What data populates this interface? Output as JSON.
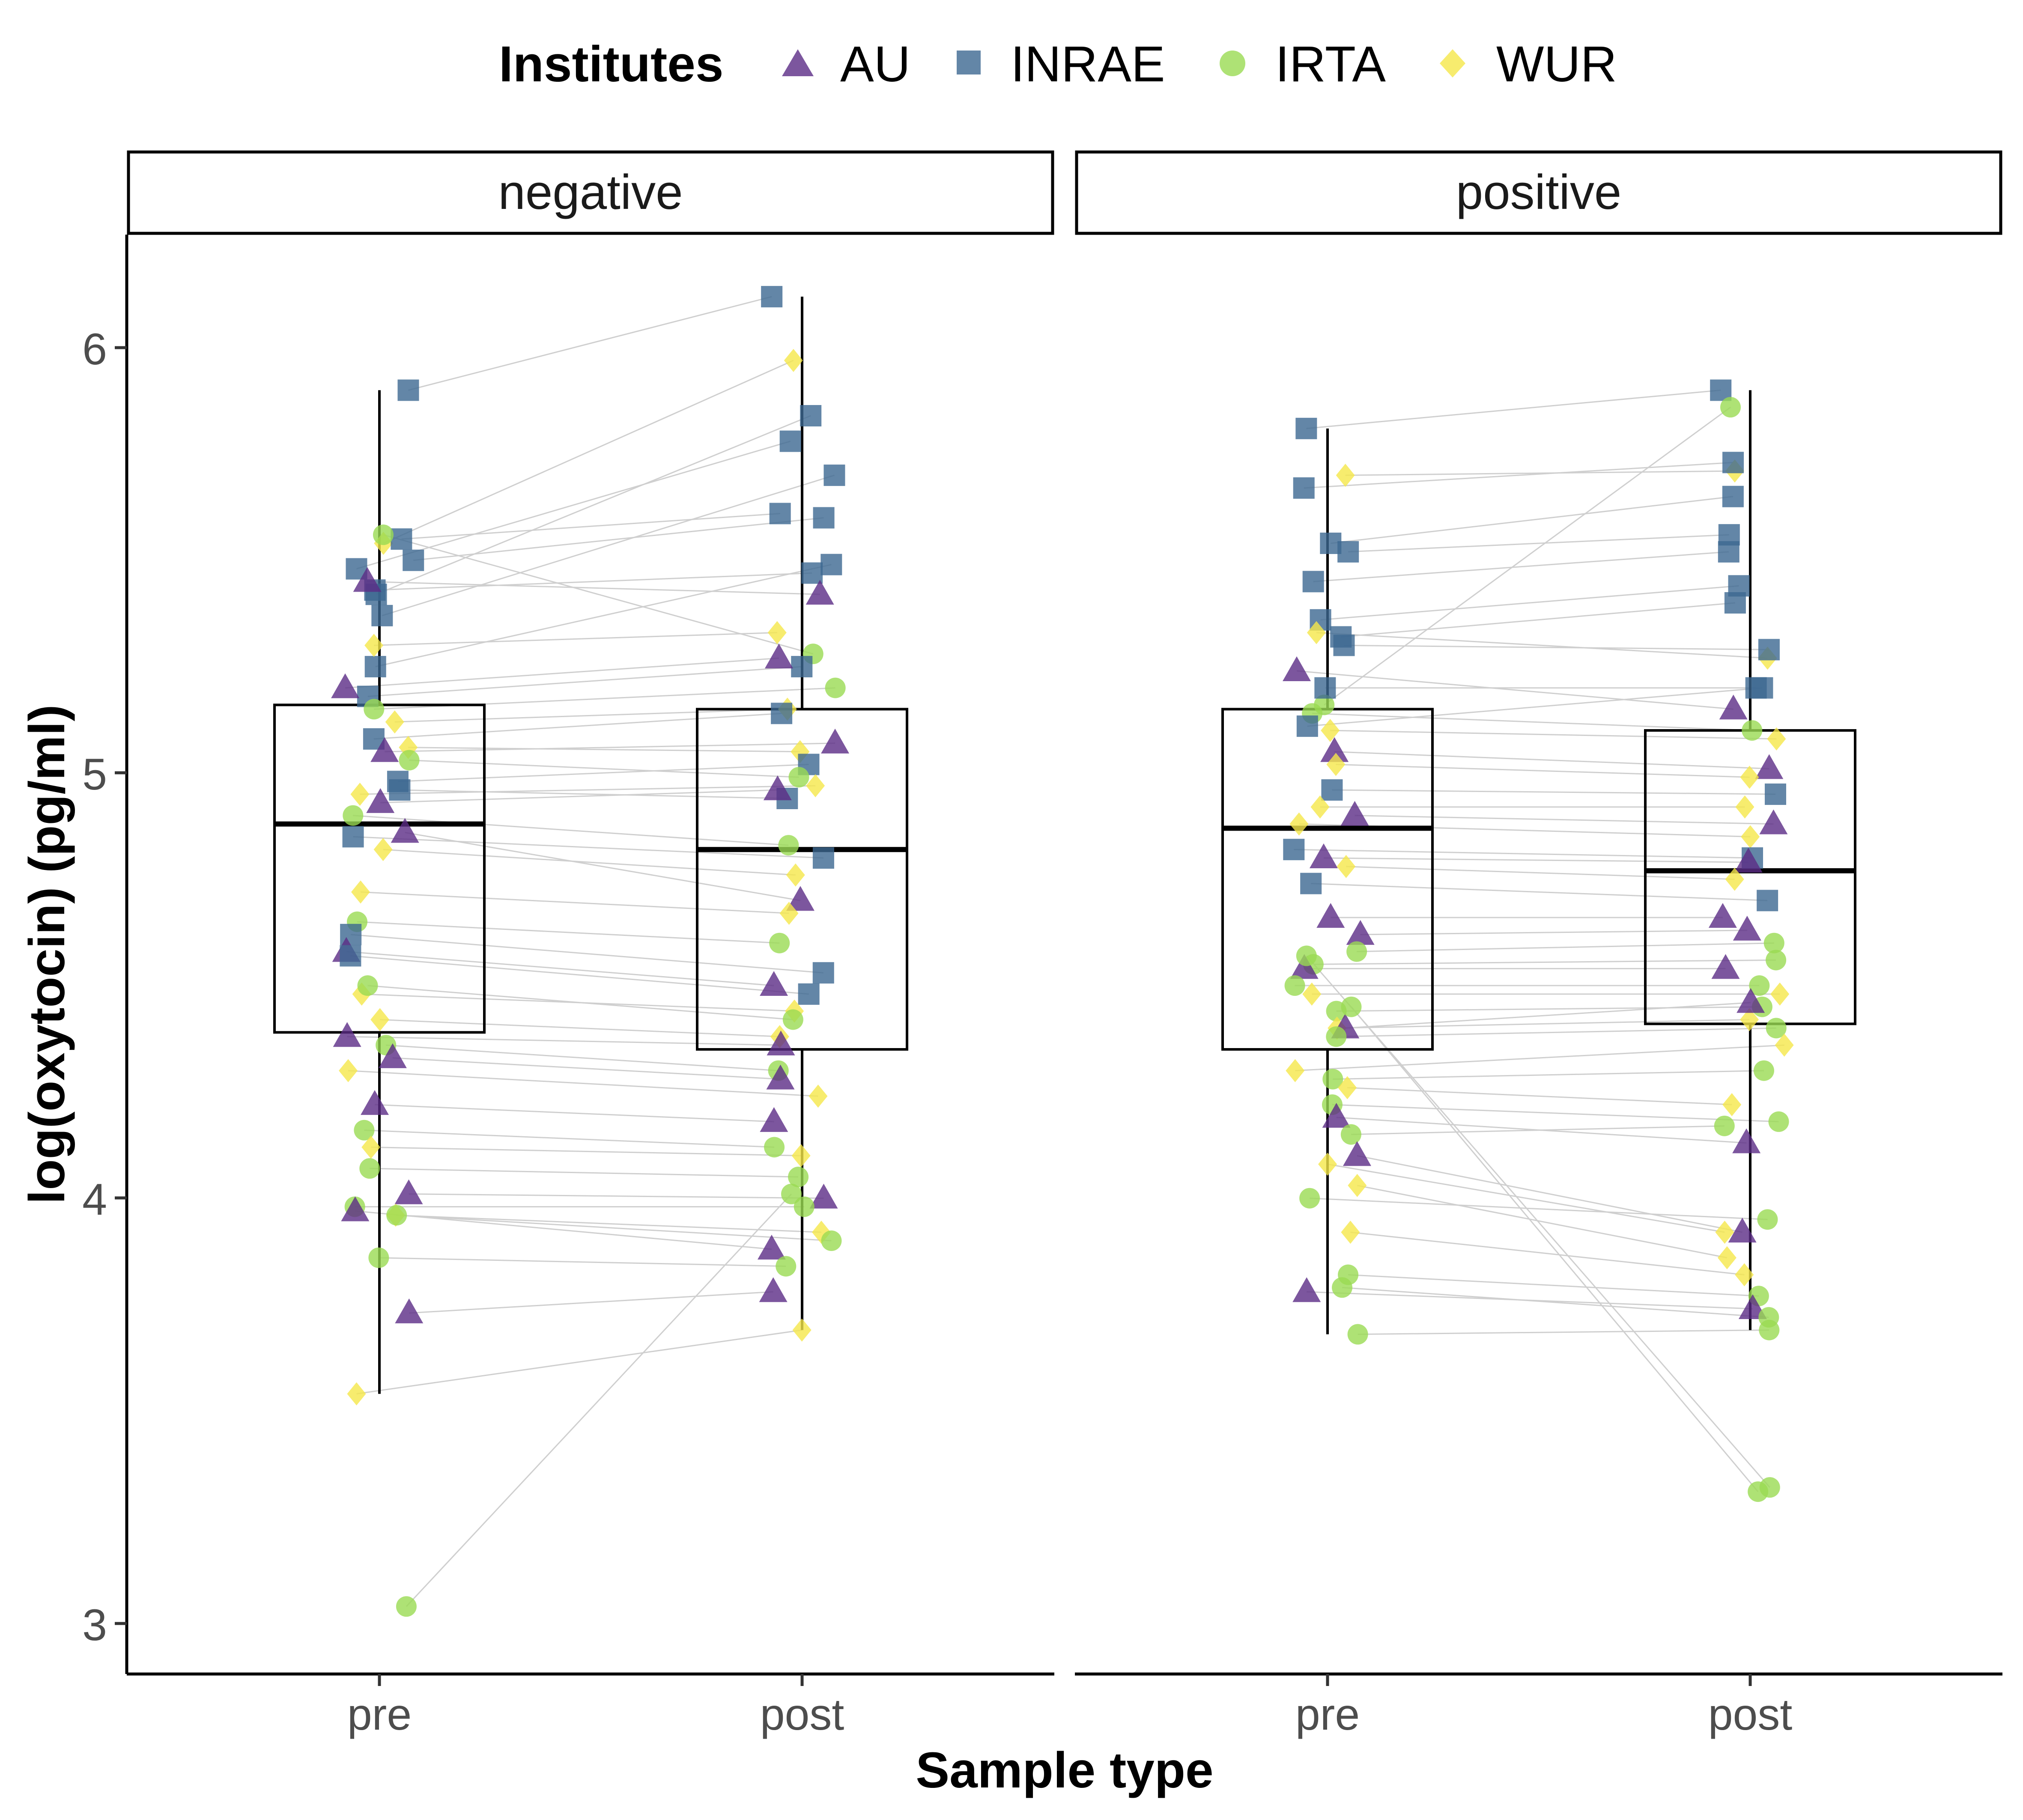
{
  "legend": {
    "title": "Institutes",
    "entries": [
      {
        "label": "AU",
        "shape": "triangle",
        "color": "#5B2C86"
      },
      {
        "label": "INRAE",
        "shape": "square",
        "color": "#3C6891"
      },
      {
        "label": "IRTA",
        "shape": "circle",
        "color": "#9ADB52"
      },
      {
        "label": "WUR",
        "shape": "diamond",
        "color": "#F5E74A"
      }
    ]
  },
  "axes": {
    "xlabel": "Sample type",
    "ylabel": "log(oxytocin) (pg/ml)",
    "yticks": [
      "3",
      "4",
      "5",
      "6"
    ],
    "xticks": [
      "pre",
      "post"
    ]
  },
  "colors": {
    "lines": "#cfcfcf",
    "box": "#000000",
    "axis_text": "#4d4d4d"
  },
  "chart_data": {
    "type": "scatter",
    "subtype": "faceted boxplot with jittered paired points",
    "ylim": [
      2.88,
      6.27
    ],
    "grid": false,
    "legend_position": "top",
    "categories": [
      "pre",
      "post"
    ],
    "facets": [
      {
        "name": "negative",
        "boxes": [
          {
            "category": "pre",
            "lower_whisker": 3.54,
            "q1": 4.39,
            "median": 4.88,
            "q3": 5.16,
            "upper_whisker": 5.9
          },
          {
            "category": "post",
            "lower_whisker": 3.69,
            "q1": 4.35,
            "median": 4.82,
            "q3": 5.15,
            "upper_whisker": 6.12
          }
        ],
        "pairs": [
          {
            "institute": "INRAE",
            "pre": 5.9,
            "post": 6.12
          },
          {
            "institute": "WUR",
            "pre": 5.54,
            "post": 5.97
          },
          {
            "institute": "INRAE",
            "pre": 5.42,
            "post": 5.84
          },
          {
            "institute": "INRAE",
            "pre": 5.48,
            "post": 5.78
          },
          {
            "institute": "INRAE",
            "pre": 5.37,
            "post": 5.7
          },
          {
            "institute": "INRAE",
            "pre": 5.55,
            "post": 5.61
          },
          {
            "institute": "INRAE",
            "pre": 5.5,
            "post": 5.6
          },
          {
            "institute": "INRAE",
            "pre": 5.25,
            "post": 5.49
          },
          {
            "institute": "INRAE",
            "pre": 5.43,
            "post": 5.47
          },
          {
            "institute": "AU",
            "pre": 5.45,
            "post": 5.42
          },
          {
            "institute": "IRTA",
            "pre": 5.56,
            "post": 5.28
          },
          {
            "institute": "WUR",
            "pre": 5.3,
            "post": 5.33
          },
          {
            "institute": "INRAE",
            "pre": 5.18,
            "post": 5.25
          },
          {
            "institute": "AU",
            "pre": 5.2,
            "post": 5.27
          },
          {
            "institute": "IRTA",
            "pre": 5.15,
            "post": 5.2
          },
          {
            "institute": "WUR",
            "pre": 5.12,
            "post": 5.15
          },
          {
            "institute": "INRAE",
            "pre": 5.08,
            "post": 5.14
          },
          {
            "institute": "AU",
            "pre": 5.05,
            "post": 5.07
          },
          {
            "institute": "WUR",
            "pre": 5.06,
            "post": 5.05
          },
          {
            "institute": "INRAE",
            "pre": 4.98,
            "post": 5.02
          },
          {
            "institute": "IRTA",
            "pre": 5.03,
            "post": 4.99
          },
          {
            "institute": "WUR",
            "pre": 4.95,
            "post": 4.97
          },
          {
            "institute": "INRAE",
            "pre": 4.96,
            "post": 4.94
          },
          {
            "institute": "AU",
            "pre": 4.93,
            "post": 4.96
          },
          {
            "institute": "IRTA",
            "pre": 4.9,
            "post": 4.83
          },
          {
            "institute": "INRAE",
            "pre": 4.85,
            "post": 4.8
          },
          {
            "institute": "WUR",
            "pre": 4.82,
            "post": 4.76
          },
          {
            "institute": "AU",
            "pre": 4.86,
            "post": 4.7
          },
          {
            "institute": "WUR",
            "pre": 4.72,
            "post": 4.67
          },
          {
            "institute": "IRTA",
            "pre": 4.65,
            "post": 4.6
          },
          {
            "institute": "INRAE",
            "pre": 4.62,
            "post": 4.53
          },
          {
            "institute": "AU",
            "pre": 4.58,
            "post": 4.5
          },
          {
            "institute": "INRAE",
            "pre": 4.57,
            "post": 4.48
          },
          {
            "institute": "WUR",
            "pre": 4.48,
            "post": 4.44
          },
          {
            "institute": "IRTA",
            "pre": 4.5,
            "post": 4.42
          },
          {
            "institute": "WUR",
            "pre": 4.42,
            "post": 4.38
          },
          {
            "institute": "AU",
            "pre": 4.38,
            "post": 4.36
          },
          {
            "institute": "IRTA",
            "pre": 4.36,
            "post": 4.3
          },
          {
            "institute": "AU",
            "pre": 4.33,
            "post": 4.28
          },
          {
            "institute": "WUR",
            "pre": 4.3,
            "post": 4.24
          },
          {
            "institute": "AU",
            "pre": 4.22,
            "post": 4.18
          },
          {
            "institute": "IRTA",
            "pre": 4.16,
            "post": 4.12
          },
          {
            "institute": "WUR",
            "pre": 4.12,
            "post": 4.1
          },
          {
            "institute": "IRTA",
            "pre": 4.07,
            "post": 4.05
          },
          {
            "institute": "AU",
            "pre": 4.01,
            "post": 4.0
          },
          {
            "institute": "IRTA",
            "pre": 3.98,
            "post": 3.98
          },
          {
            "institute": "WUR",
            "pre": 3.96,
            "post": 3.92
          },
          {
            "institute": "IRTA",
            "pre": 3.96,
            "post": 3.9
          },
          {
            "institute": "AU",
            "pre": 3.97,
            "post": 3.88
          },
          {
            "institute": "IRTA",
            "pre": 3.86,
            "post": 3.84
          },
          {
            "institute": "AU",
            "pre": 3.73,
            "post": 3.78
          },
          {
            "institute": "WUR",
            "pre": 3.54,
            "post": 3.69
          },
          {
            "institute": "IRTA",
            "pre": 3.04,
            "post": 4.01
          }
        ]
      },
      {
        "name": "positive",
        "boxes": [
          {
            "category": "pre",
            "lower_whisker": 3.68,
            "q1": 4.35,
            "median": 4.87,
            "q3": 5.15,
            "upper_whisker": 5.81
          },
          {
            "category": "post",
            "lower_whisker": 3.69,
            "q1": 4.41,
            "median": 4.77,
            "q3": 5.1,
            "upper_whisker": 5.9
          }
        ],
        "pairs": [
          {
            "institute": "INRAE",
            "pre": 5.81,
            "post": 5.9
          },
          {
            "institute": "WUR",
            "pre": 5.7,
            "post": 5.71
          },
          {
            "institute": "INRAE",
            "pre": 5.67,
            "post": 5.73
          },
          {
            "institute": "IRTA",
            "pre": 5.16,
            "post": 5.86
          },
          {
            "institute": "INRAE",
            "pre": 5.54,
            "post": 5.65
          },
          {
            "institute": "INRAE",
            "pre": 5.52,
            "post": 5.56
          },
          {
            "institute": "INRAE",
            "pre": 5.45,
            "post": 5.52
          },
          {
            "institute": "INRAE",
            "pre": 5.36,
            "post": 5.44
          },
          {
            "institute": "INRAE",
            "pre": 5.32,
            "post": 5.4
          },
          {
            "institute": "WUR",
            "pre": 5.33,
            "post": 5.27
          },
          {
            "institute": "INRAE",
            "pre": 5.3,
            "post": 5.29
          },
          {
            "institute": "AU",
            "pre": 5.24,
            "post": 5.15
          },
          {
            "institute": "INRAE",
            "pre": 5.2,
            "post": 5.2
          },
          {
            "institute": "IRTA",
            "pre": 5.14,
            "post": 5.1
          },
          {
            "institute": "WUR",
            "pre": 5.1,
            "post": 5.08
          },
          {
            "institute": "INRAE",
            "pre": 5.11,
            "post": 5.2
          },
          {
            "institute": "AU",
            "pre": 5.05,
            "post": 5.01
          },
          {
            "institute": "WUR",
            "pre": 5.02,
            "post": 4.99
          },
          {
            "institute": "INRAE",
            "pre": 4.96,
            "post": 4.95
          },
          {
            "institute": "WUR",
            "pre": 4.92,
            "post": 4.92
          },
          {
            "institute": "AU",
            "pre": 4.9,
            "post": 4.88
          },
          {
            "institute": "WUR",
            "pre": 4.88,
            "post": 4.85
          },
          {
            "institute": "INRAE",
            "pre": 4.82,
            "post": 4.8
          },
          {
            "institute": "AU",
            "pre": 4.8,
            "post": 4.79
          },
          {
            "institute": "WUR",
            "pre": 4.78,
            "post": 4.75
          },
          {
            "institute": "INRAE",
            "pre": 4.74,
            "post": 4.7
          },
          {
            "institute": "AU",
            "pre": 4.66,
            "post": 4.66
          },
          {
            "institute": "AU",
            "pre": 4.62,
            "post": 4.63
          },
          {
            "institute": "IRTA",
            "pre": 4.58,
            "post": 4.6
          },
          {
            "institute": "IRTA",
            "pre": 4.55,
            "post": 4.56
          },
          {
            "institute": "AU",
            "pre": 4.54,
            "post": 4.54
          },
          {
            "institute": "IRTA",
            "pre": 4.5,
            "post": 4.5
          },
          {
            "institute": "WUR",
            "pre": 4.48,
            "post": 4.48
          },
          {
            "institute": "IRTA",
            "pre": 4.44,
            "post": 4.45
          },
          {
            "institute": "WUR",
            "pre": 4.4,
            "post": 4.42
          },
          {
            "institute": "AU",
            "pre": 4.4,
            "post": 4.46
          },
          {
            "institute": "IRTA",
            "pre": 4.38,
            "post": 4.4
          },
          {
            "institute": "WUR",
            "pre": 4.3,
            "post": 4.36
          },
          {
            "institute": "IRTA",
            "pre": 4.28,
            "post": 4.3
          },
          {
            "institute": "WUR",
            "pre": 4.26,
            "post": 4.22
          },
          {
            "institute": "IRTA",
            "pre": 4.22,
            "post": 4.18
          },
          {
            "institute": "AU",
            "pre": 4.19,
            "post": 4.13
          },
          {
            "institute": "IRTA",
            "pre": 4.15,
            "post": 4.17
          },
          {
            "institute": "WUR",
            "pre": 4.08,
            "post": 3.92
          },
          {
            "institute": "AU",
            "pre": 4.1,
            "post": 3.92
          },
          {
            "institute": "WUR",
            "pre": 4.03,
            "post": 3.86
          },
          {
            "institute": "IRTA",
            "pre": 4.0,
            "post": 3.95
          },
          {
            "institute": "WUR",
            "pre": 3.92,
            "post": 3.82
          },
          {
            "institute": "IRTA",
            "pre": 3.82,
            "post": 3.77
          },
          {
            "institute": "AU",
            "pre": 3.78,
            "post": 3.74
          },
          {
            "institute": "IRTA",
            "pre": 3.79,
            "post": 3.72
          },
          {
            "institute": "IRTA",
            "pre": 3.68,
            "post": 3.69
          },
          {
            "institute": "IRTA",
            "pre": 4.57,
            "post": 3.32
          },
          {
            "institute": "IRTA",
            "pre": 4.45,
            "post": 3.31
          }
        ]
      }
    ]
  }
}
